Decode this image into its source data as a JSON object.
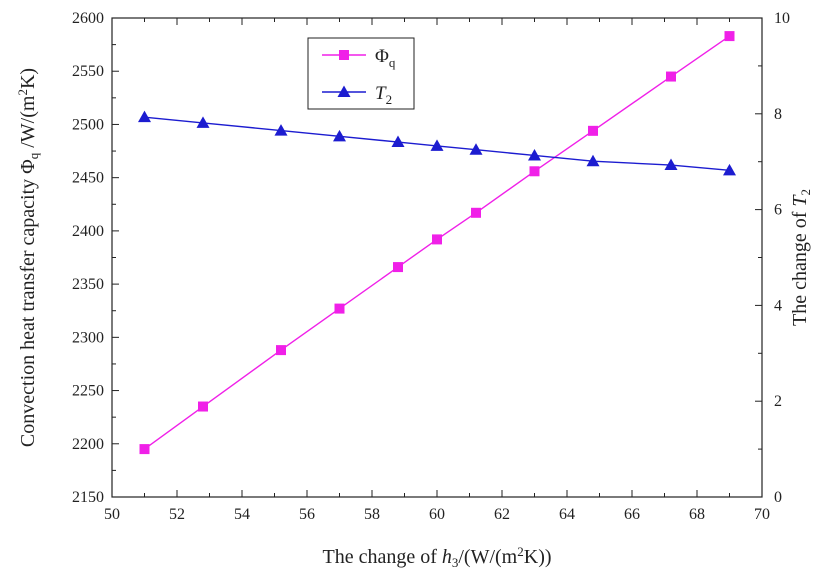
{
  "chart_data": {
    "type": "line",
    "title": "",
    "xlabel": "The change of h3/(W/(m2K))",
    "ylabel_left": "Convection heat transfer capacity Φq /W/(m2K)",
    "ylabel_right": "The change of T2",
    "xlim": [
      50,
      70
    ],
    "ylim_left": [
      2150,
      2600
    ],
    "ylim_right": [
      0,
      10
    ],
    "x_ticks": [
      50,
      52,
      54,
      56,
      58,
      60,
      62,
      64,
      66,
      68,
      70
    ],
    "y_left_ticks": [
      2150,
      2200,
      2250,
      2300,
      2350,
      2400,
      2450,
      2500,
      2550,
      2600
    ],
    "y_right_ticks": [
      0,
      2,
      4,
      6,
      8,
      10
    ],
    "grid": false,
    "legend_position": "top-center",
    "series": [
      {
        "name": "Φq",
        "axis": "left",
        "marker": "square",
        "color": "#f020e8",
        "x": [
          51,
          52.8,
          55.2,
          57,
          58.8,
          60,
          61.2,
          63,
          64.8,
          67.2,
          69
        ],
        "values": [
          2195,
          2235,
          2288,
          2327,
          2366,
          2392,
          2417,
          2456,
          2494,
          2545,
          2583
        ]
      },
      {
        "name": "T2",
        "axis": "right",
        "marker": "triangle",
        "color": "#1c1cd0",
        "x": [
          51,
          52.8,
          55.2,
          57,
          58.8,
          60,
          61.2,
          63,
          64.8,
          67.2,
          69
        ],
        "values": [
          7.93,
          7.81,
          7.65,
          7.53,
          7.41,
          7.33,
          7.25,
          7.13,
          7.01,
          6.93,
          6.82
        ]
      }
    ]
  }
}
